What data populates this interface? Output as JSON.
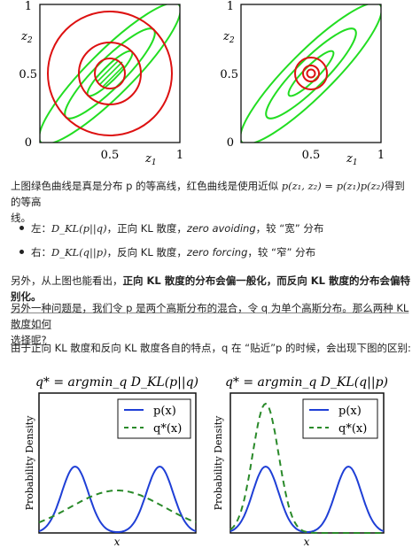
{
  "plot_top_left": {
    "axis_top_tick": "1",
    "axis_mid_tick": "0.5",
    "axis_bottom_tick": "0",
    "x_mid_tick": "0.5",
    "x_right_tick": "1",
    "x_label": "z",
    "x_label_sub": "1",
    "y_label": "z",
    "y_label_sub": "2"
  },
  "plot_top_right": {
    "axis_top_tick": "1",
    "axis_mid_tick": "0.5",
    "axis_bottom_tick": "0",
    "x_mid_tick": "0.5",
    "x_right_tick": "1",
    "x_label": "z",
    "x_label_sub": "1",
    "y_label": "z",
    "y_label_sub": "2"
  },
  "text": {
    "p1_a": "上图绿色曲线是真是分布 p 的等高线，红色曲线是使用近似 ",
    "p1_math": "p(z₁, z₂) = p(z₁)p(z₂)",
    "p1_b": "得到的等高",
    "p1_c": "线。",
    "b1_a": "左：",
    "b1_math": "D_KL(p||q)",
    "b1_b": "，正向 KL 散度，",
    "b1_i": "zero avoiding",
    "b1_c": "，较 “宽” 分布",
    "b2_a": "右：",
    "b2_math": "D_KL(q||p)",
    "b2_b": "，反向 KL 散度，",
    "b2_i": "zero forcing",
    "b2_c": "，较 “窄” 分布",
    "p2_a": "另外，从上图也能看出，",
    "p2_bold": "正向 KL 散度的分布会偏一般化，而反向 KL 散度的分布会偏特别化。",
    "p3_a": "另外一种问题是，我们令 p 是两个高斯分布的混合，令 q 为单个高斯分布。那么两种 KL 散度如何",
    "p3_b": "选择呢?",
    "p4": "由于正向 KL 散度和反向 KL 散度各自的特点，q 在 “贴近”p 的时候，会出现下图的区别:"
  },
  "plot_bottom_left": {
    "title": "q* = argmin_q D_KL(p||q)",
    "legend_p": "p(x)",
    "legend_q": "q*(x)",
    "xlabel": "x",
    "ylabel": "Probability Density"
  },
  "plot_bottom_right": {
    "title": "q* = argmin_q D_KL(q||p)",
    "legend_p": "p(x)",
    "legend_q": "q*(x)",
    "xlabel": "x",
    "ylabel": "Probability Density"
  },
  "colors": {
    "green_contour": "#22dd22",
    "red_contour": "#dd1111",
    "blue_curve": "#1f3fd6",
    "green_dashed": "#2a8a2a"
  }
}
